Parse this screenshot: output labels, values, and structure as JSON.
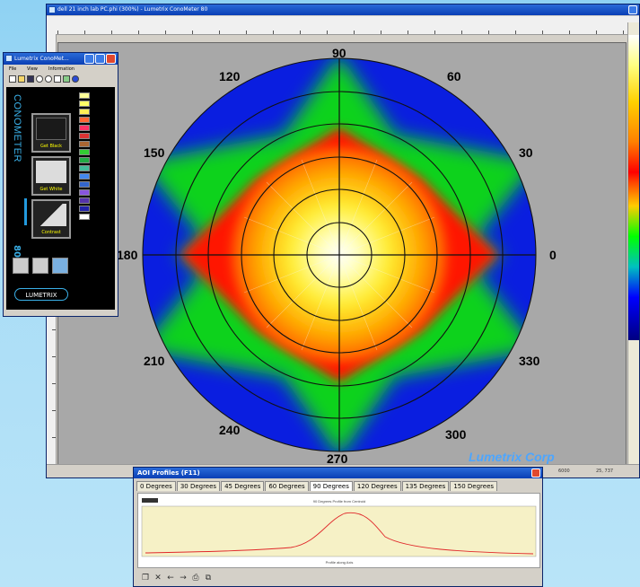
{
  "main_window": {
    "title": "dell 21 inch lab PC.phi (300%) - Lumetrix ConoMeter 80",
    "status_left": "",
    "status_mid": "6000",
    "status_right": "25, 737",
    "watermark": "Lumetrix Corp"
  },
  "chart_data": {
    "type": "heatmap",
    "subtype": "polar conoscopic luminance map",
    "angle_labels": [
      "0",
      "30",
      "60",
      "90",
      "120",
      "150",
      "180",
      "210",
      "240",
      "270",
      "300",
      "330"
    ],
    "rings": 6,
    "colormap": [
      "#0000ff",
      "#00ff00",
      "#ff0000",
      "#ffcc00",
      "#ffffaa",
      "#ffffff"
    ]
  },
  "conometer": {
    "title": "Lumetrix ConoMet...",
    "menu": [
      "File",
      "View",
      "Information"
    ],
    "vertical_text": "CONOMETER",
    "model": "80",
    "buttons": [
      {
        "label": "Get Black"
      },
      {
        "label": "Get White"
      },
      {
        "label": "Contrast"
      }
    ],
    "palette": [
      "#ffff99",
      "#ffff66",
      "#ffee55",
      "#ff6633",
      "#ff3366",
      "#dd3333",
      "#aa6633",
      "#33cc33",
      "#22aa44",
      "#44bb99",
      "#4488ee",
      "#3366cc",
      "#8855dd",
      "#5533aa",
      "#2222aa",
      "#ffffff"
    ],
    "logo": "LUMETRIX"
  },
  "aoi": {
    "title": "AOI Profiles (F11)",
    "tabs": [
      "0 Degrees",
      "30 Degrees",
      "45 Degrees",
      "60 Degrees",
      "90 Degrees",
      "120 Degrees",
      "135 Degrees",
      "150 Degrees"
    ],
    "active_tab": "90 Degrees",
    "chart_title": "90 Degrees Profile from Centroid",
    "xlabel": "Profile along Axis"
  }
}
